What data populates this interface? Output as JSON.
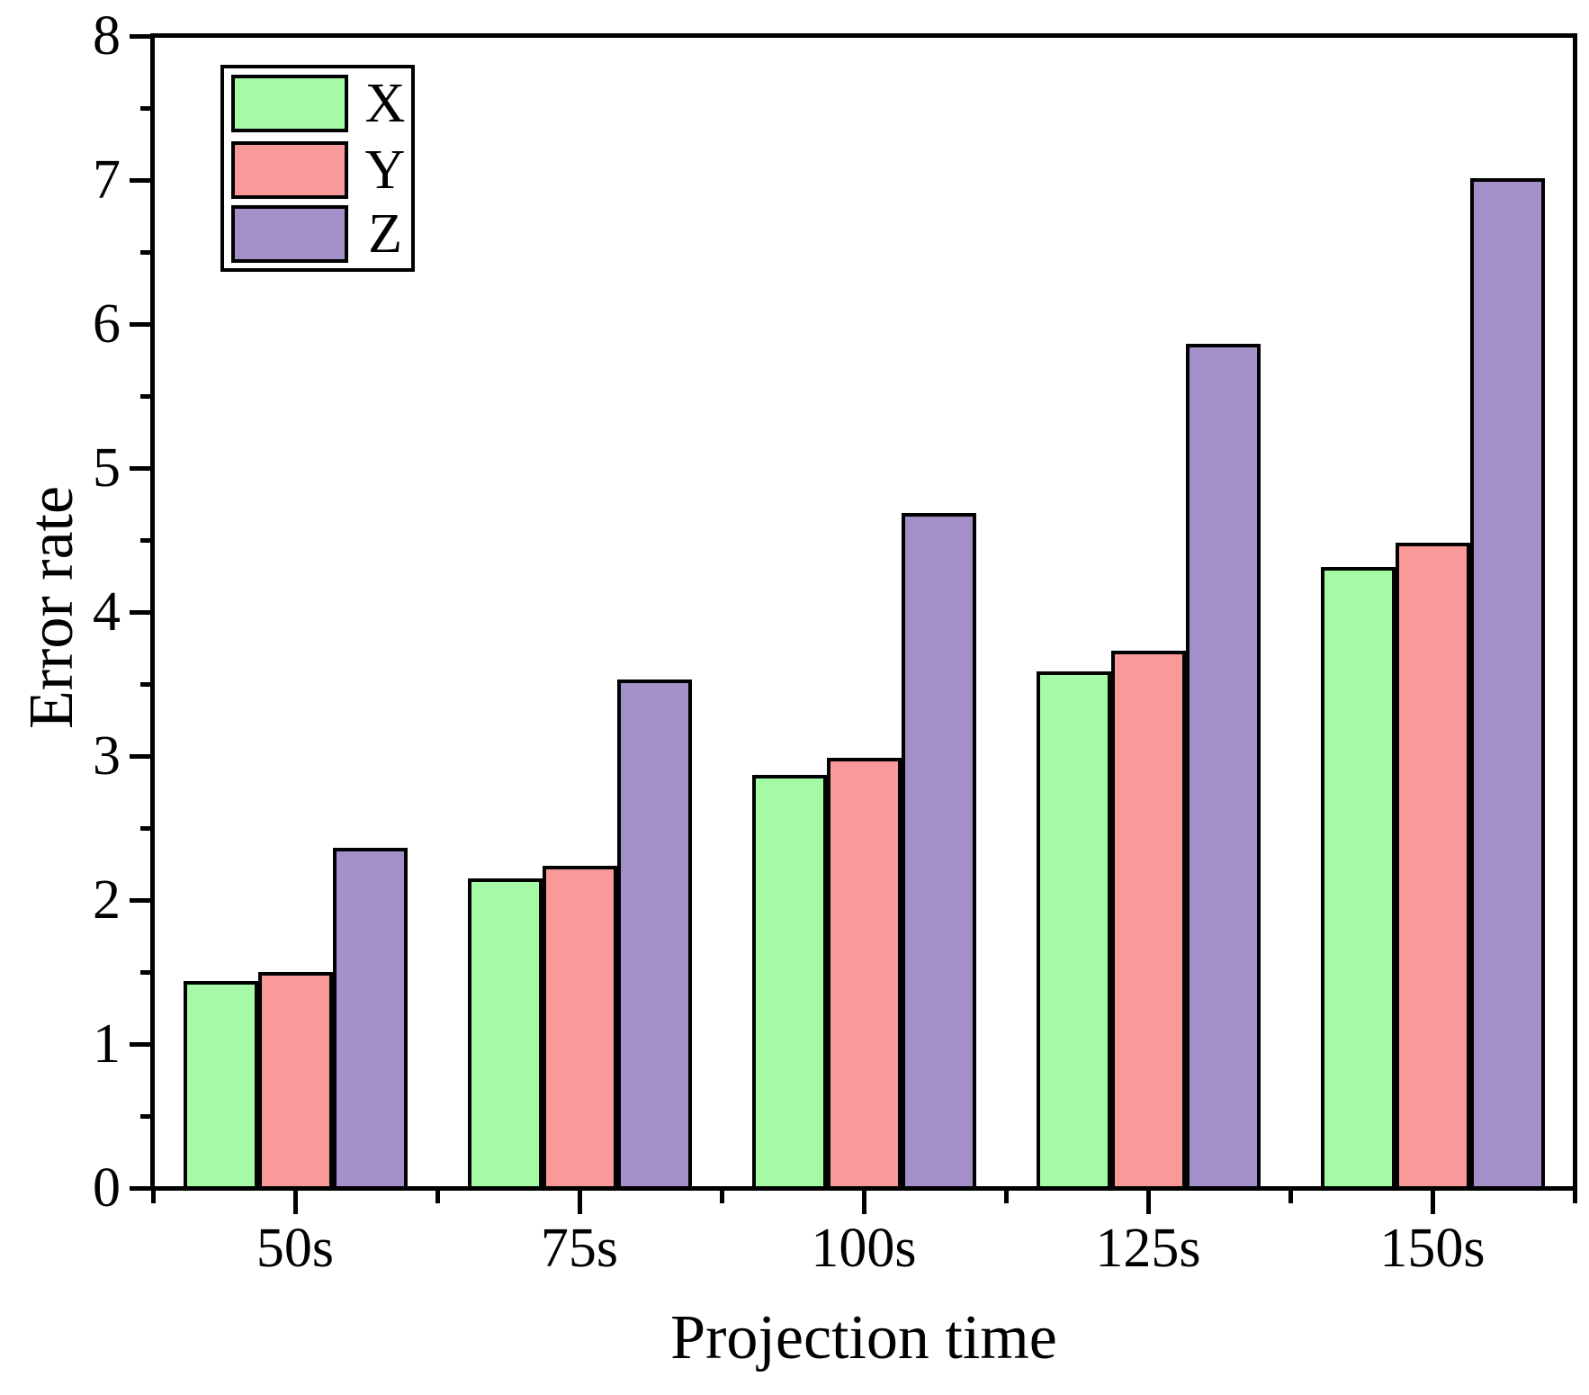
{
  "chart_data": {
    "type": "bar",
    "title": "",
    "xlabel": "Projection time",
    "ylabel": "Error rate",
    "categories": [
      "50s",
      "75s",
      "100s",
      "125s",
      "150s"
    ],
    "series": [
      {
        "name": "X",
        "color": "#A5FBA5",
        "values": [
          1.44,
          2.15,
          2.87,
          3.59,
          4.31
        ]
      },
      {
        "name": "Y",
        "color": "#FA9999",
        "values": [
          1.5,
          2.24,
          2.99,
          3.73,
          4.48
        ]
      },
      {
        "name": "Z",
        "color": "#A390C8",
        "values": [
          2.36,
          3.53,
          4.69,
          5.86,
          7.01
        ]
      }
    ],
    "ylim": [
      0,
      8
    ],
    "ytick_step": 1,
    "yminor_step": 0.5,
    "bar_edge_color": "#000000",
    "axis_color": "#000000",
    "background": "#FFFFFF",
    "legend_position": "top-left",
    "grid": false
  }
}
